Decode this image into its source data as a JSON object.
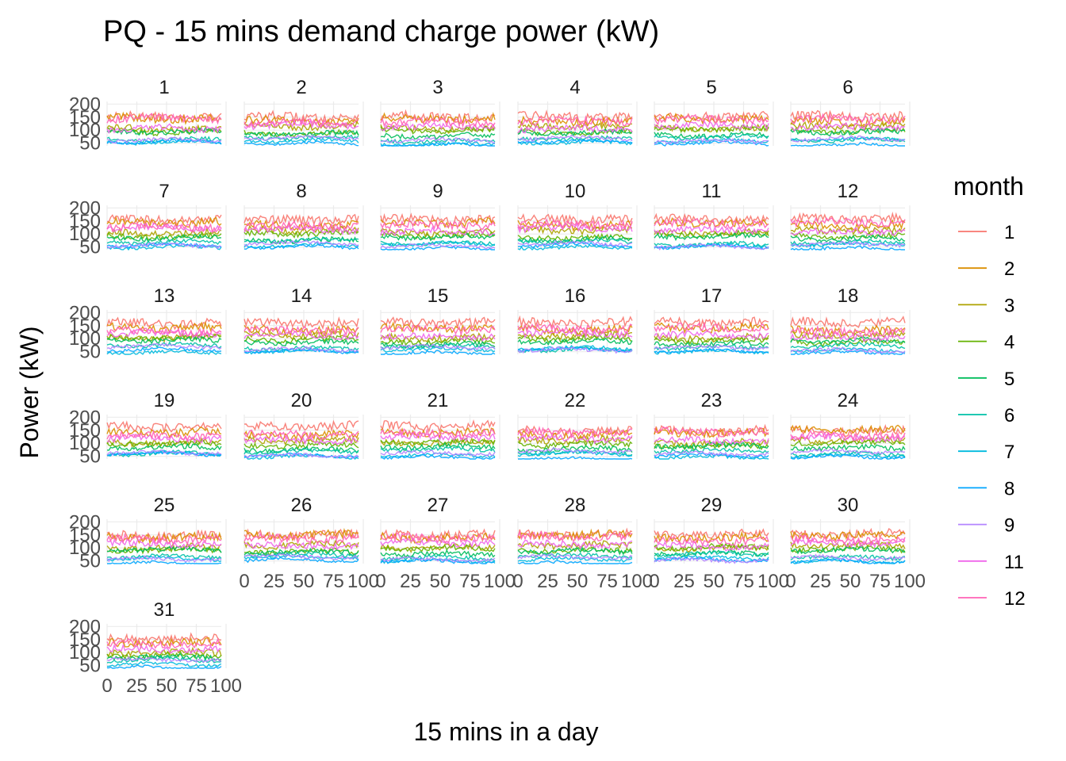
{
  "chart_data": {
    "type": "line",
    "title": "PQ - 15 mins demand charge power (kW)",
    "xlabel": "15 mins in a day",
    "ylabel": "Power (kW)",
    "facets": [
      "1",
      "2",
      "3",
      "4",
      "5",
      "6",
      "7",
      "8",
      "9",
      "10",
      "11",
      "12",
      "13",
      "14",
      "15",
      "16",
      "17",
      "18",
      "19",
      "20",
      "21",
      "22",
      "23",
      "24",
      "25",
      "26",
      "27",
      "28",
      "29",
      "30",
      "31"
    ],
    "facet_columns": 6,
    "xlim": [
      0,
      96
    ],
    "x_ticks": [
      0,
      25,
      50,
      75,
      100
    ],
    "x_tick_labels": [
      "0",
      "25",
      "50",
      "75",
      "100"
    ],
    "ylim": [
      40,
      210
    ],
    "y_ticks": [
      50,
      100,
      150,
      200
    ],
    "y_tick_labels": [
      "50",
      "100",
      "150",
      "200"
    ],
    "grid": true,
    "legend": {
      "title": "month",
      "position": "right",
      "entries": [
        "1",
        "2",
        "3",
        "4",
        "5",
        "6",
        "7",
        "8",
        "9",
        "11",
        "12"
      ]
    },
    "series": [
      {
        "name": "1",
        "color": "#F8766D",
        "mean": 155
      },
      {
        "name": "2",
        "color": "#DB8E00",
        "mean": 140
      },
      {
        "name": "3",
        "color": "#AEA200",
        "mean": 110
      },
      {
        "name": "4",
        "color": "#64B200",
        "mean": 95
      },
      {
        "name": "5",
        "color": "#00BD5C",
        "mean": 85
      },
      {
        "name": "6",
        "color": "#00C1A7",
        "mean": 68
      },
      {
        "name": "7",
        "color": "#00BADE",
        "mean": 55
      },
      {
        "name": "8",
        "color": "#00A6FF",
        "mean": 50
      },
      {
        "name": "9",
        "color": "#B385FF",
        "mean": 62
      },
      {
        "name": "11",
        "color": "#EF67EB",
        "mean": 115
      },
      {
        "name": "12",
        "color": "#FF63B6",
        "mean": 135
      }
    ]
  }
}
